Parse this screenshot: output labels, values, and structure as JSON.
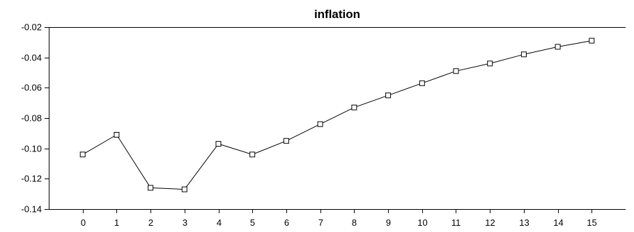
{
  "chart_data": {
    "type": "line",
    "title": "inflation",
    "xlabel": "",
    "ylabel": "",
    "x": [
      0,
      1,
      2,
      3,
      4,
      5,
      6,
      7,
      8,
      9,
      10,
      11,
      12,
      13,
      14,
      15
    ],
    "series": [
      {
        "values": [
          -0.104,
          -0.091,
          -0.126,
          -0.127,
          -0.097,
          -0.104,
          -0.095,
          -0.084,
          -0.073,
          -0.065,
          -0.057,
          -0.049,
          -0.044,
          -0.038,
          -0.033,
          -0.029
        ],
        "color": "#000000",
        "marker": "square"
      }
    ],
    "xticks": [
      "0",
      "1",
      "2",
      "3",
      "4",
      "5",
      "6",
      "7",
      "8",
      "9",
      "10",
      "11",
      "12",
      "13",
      "14",
      "15"
    ],
    "yticks": [
      "-0.02",
      "-0.04",
      "-0.06",
      "-0.08",
      "-0.10",
      "-0.12",
      "-0.14"
    ],
    "ylim": [
      -0.14,
      -0.02
    ],
    "xlim": [
      -1,
      16
    ],
    "grid": false,
    "legend": "none"
  }
}
